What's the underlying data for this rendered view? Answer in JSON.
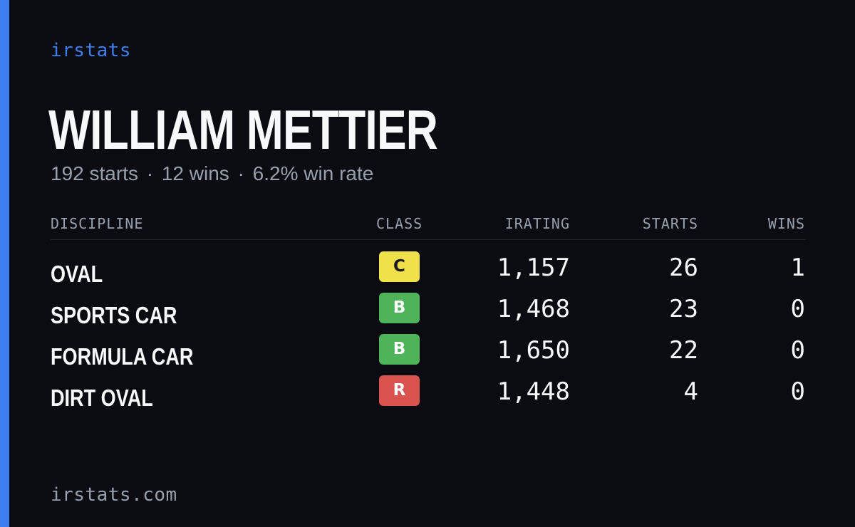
{
  "brand": "irstats",
  "driver": {
    "name": "WILLIAM METTIER",
    "starts_text": "192 starts",
    "wins_text": "12 wins",
    "win_rate_text": "6.2% win rate",
    "separator": "·"
  },
  "table": {
    "headers": {
      "discipline": "DISCIPLINE",
      "class": "CLASS",
      "irating": "IRATING",
      "starts": "STARTS",
      "wins": "WINS"
    },
    "rows": [
      {
        "discipline": "OVAL",
        "class": "C",
        "class_color": "#f0e04a",
        "class_text_color": "#1a1a1a",
        "irating": "1,157",
        "starts": "26",
        "wins": "1"
      },
      {
        "discipline": "SPORTS CAR",
        "class": "B",
        "class_color": "#4fb35a",
        "class_text_color": "#ffffff",
        "irating": "1,468",
        "starts": "23",
        "wins": "0"
      },
      {
        "discipline": "FORMULA CAR",
        "class": "B",
        "class_color": "#4fb35a",
        "class_text_color": "#ffffff",
        "irating": "1,650",
        "starts": "22",
        "wins": "0"
      },
      {
        "discipline": "DIRT OVAL",
        "class": "R",
        "class_color": "#d9534f",
        "class_text_color": "#ffffff",
        "irating": "1,448",
        "starts": "4",
        "wins": "0"
      }
    ]
  },
  "footer": {
    "domain": "irstats.com"
  },
  "colors": {
    "background": "#0a0c12",
    "accent": "#3d7ff0",
    "muted_text": "#98a0ae",
    "primary_text": "#f7f8fa",
    "divider": "#1f232c"
  }
}
